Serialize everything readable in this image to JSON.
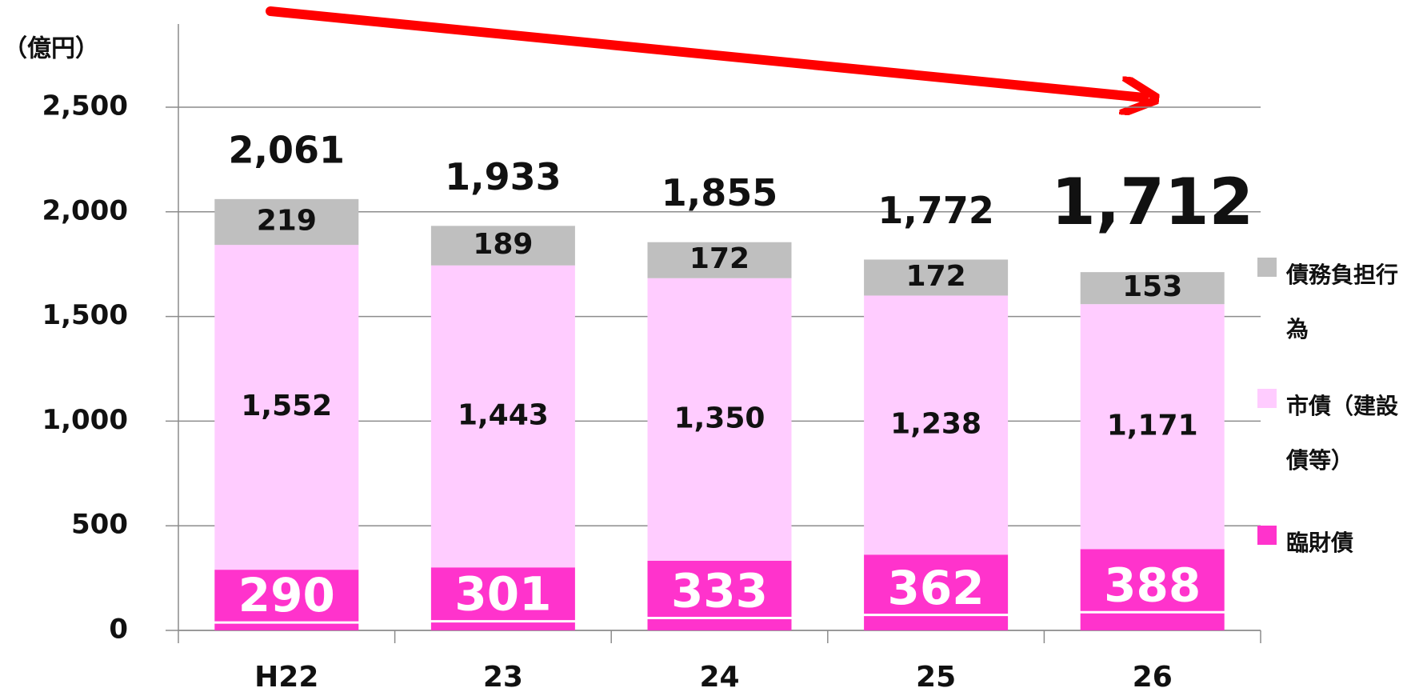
{
  "chart_data": {
    "type": "stacked-bar",
    "y_label": "（億円）",
    "categories": [
      "H22",
      "23",
      "24",
      "25",
      "26"
    ],
    "series": [
      {
        "name": "臨財債",
        "color": "#ff33cc",
        "values": [
          290,
          301,
          333,
          362,
          388
        ]
      },
      {
        "name": "市債（建設債等）",
        "color": "#ffccff",
        "values": [
          1552,
          1443,
          1350,
          1238,
          1171
        ],
        "value_labels": [
          "1,552",
          "1,443",
          "1,350",
          "1,238",
          "1,171"
        ]
      },
      {
        "name": "債務負担行為",
        "color": "#bfbfbf",
        "values": [
          219,
          189,
          172,
          172,
          153
        ]
      }
    ],
    "totals": [
      2061,
      1933,
      1855,
      1772,
      1712
    ],
    "total_labels": [
      "2,061",
      "1,933",
      "1,855",
      "1,772",
      "1,712"
    ],
    "ylim": [
      0,
      2500
    ],
    "yticks": [
      0,
      500,
      {
        "value": 1000,
        "label": "1,000"
      },
      {
        "value": 1500,
        "label": "1,500"
      },
      {
        "value": 2000,
        "label": "2,000"
      },
      {
        "value": 2500,
        "label": "2,500"
      }
    ],
    "grid": true
  }
}
